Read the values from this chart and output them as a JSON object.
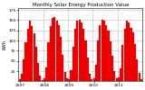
{
  "title": "Monthly Solar Energy Production Value",
  "ylabel": "kWh",
  "bar_color": "#ff0000",
  "edge_color": "#880000",
  "background_color": "#ffffff",
  "grid_color": "#888888",
  "values": [
    5,
    18,
    55,
    95,
    130,
    148,
    135,
    118,
    85,
    45,
    15,
    4,
    8,
    35,
    95,
    135,
    155,
    158,
    148,
    138,
    108,
    65,
    22,
    7,
    6,
    28,
    85,
    128,
    148,
    152,
    145,
    130,
    100,
    58,
    18,
    5,
    7,
    40,
    100,
    138,
    152,
    148,
    138,
    125,
    98,
    62,
    25,
    8,
    9,
    32,
    90,
    130,
    148,
    145,
    132,
    120,
    92,
    55,
    20,
    6
  ],
  "n_years": 5,
  "start_year": 2007,
  "ylim": [
    0,
    180
  ],
  "ytick_vals": [
    25,
    50,
    75,
    100,
    125,
    150,
    175
  ],
  "title_fontsize": 4.0,
  "tick_fontsize": 3.2,
  "ylabel_fontsize": 3.5
}
